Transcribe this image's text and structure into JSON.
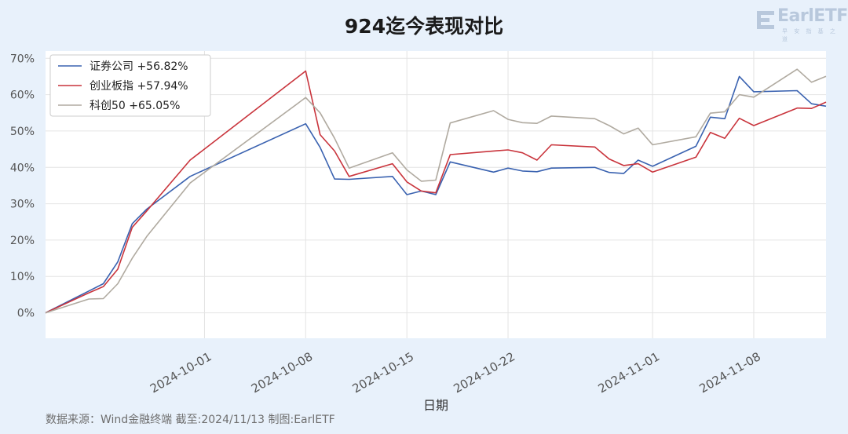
{
  "title": "924迄今表现对比",
  "logo": {
    "text": "EarlETF",
    "subtitle": "早 安 指 基 之 道"
  },
  "source_note": "数据来源：Wind金融终端 截至:2024/11/13 制图:EarlETF",
  "chart_data": {
    "type": "line",
    "title": "924迄今表现对比",
    "xlabel": "日期",
    "ylabel": "",
    "x_range": [
      "2024-09-20",
      "2024-11-13"
    ],
    "ylim": [
      -7,
      72
    ],
    "yticks": [
      0,
      10,
      20,
      30,
      40,
      50,
      60,
      70
    ],
    "ytick_labels": [
      "0%",
      "10%",
      "20%",
      "30%",
      "40%",
      "50%",
      "60%",
      "70%"
    ],
    "xticks": [
      "2024-10-01",
      "2024-10-08",
      "2024-10-15",
      "2024-10-22",
      "2024-11-01",
      "2024-11-08"
    ],
    "grid": true,
    "legend_position": "top-left",
    "x": [
      "2024-09-20",
      "2024-09-23",
      "2024-09-24",
      "2024-09-25",
      "2024-09-26",
      "2024-09-27",
      "2024-09-30",
      "2024-10-08",
      "2024-10-09",
      "2024-10-10",
      "2024-10-11",
      "2024-10-14",
      "2024-10-15",
      "2024-10-16",
      "2024-10-17",
      "2024-10-18",
      "2024-10-21",
      "2024-10-22",
      "2024-10-23",
      "2024-10-24",
      "2024-10-25",
      "2024-10-28",
      "2024-10-29",
      "2024-10-30",
      "2024-10-31",
      "2024-11-01",
      "2024-11-04",
      "2024-11-05",
      "2024-11-06",
      "2024-11-07",
      "2024-11-08",
      "2024-11-11",
      "2024-11-12",
      "2024-11-13"
    ],
    "series": [
      {
        "name": "证券公司",
        "legend_label": "证券公司  +56.82%",
        "color": "#3a62b0",
        "values": [
          0,
          6.0,
          8.0,
          14.0,
          24.5,
          28.5,
          37.5,
          52.0,
          45.5,
          36.8,
          36.7,
          37.5,
          32.5,
          33.5,
          32.5,
          41.5,
          38.7,
          39.8,
          39.0,
          38.8,
          39.8,
          40.0,
          38.6,
          38.3,
          42.0,
          40.3,
          45.8,
          53.8,
          53.4,
          65.0,
          60.8,
          61.1,
          57.5,
          56.82
        ]
      },
      {
        "name": "创业板指",
        "legend_label": "创业板指  +57.94%",
        "color": "#c9343c",
        "values": [
          0,
          5.5,
          7.2,
          12.0,
          23.5,
          28.0,
          42.0,
          66.5,
          49.0,
          44.5,
          37.5,
          41.0,
          36.0,
          33.5,
          33.0,
          43.5,
          44.5,
          44.8,
          44.0,
          42.0,
          46.2,
          45.6,
          42.3,
          40.5,
          41.0,
          38.7,
          42.8,
          49.6,
          48.0,
          53.5,
          51.5,
          56.3,
          56.2,
          57.94
        ]
      },
      {
        "name": "科创50",
        "legend_label": "科创50  +65.05%",
        "color": "#b0aaa0",
        "values": [
          0,
          3.8,
          3.9,
          8.0,
          15.0,
          21.0,
          35.7,
          59.2,
          55.0,
          48.0,
          39.8,
          44.0,
          39.3,
          36.2,
          36.5,
          52.2,
          55.6,
          53.2,
          52.3,
          52.1,
          54.1,
          53.4,
          51.5,
          49.2,
          50.8,
          46.2,
          48.4,
          54.9,
          55.3,
          60.0,
          59.3,
          67.0,
          63.4,
          65.05
        ]
      }
    ]
  }
}
